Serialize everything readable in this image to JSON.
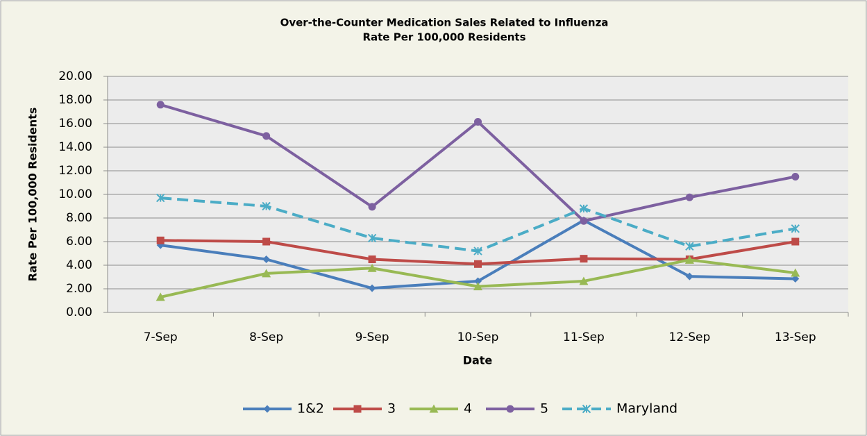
{
  "chart_data": {
    "type": "line",
    "title": "Over-the-Counter Medication Sales Related to Influenza",
    "subtitle": "Rate Per 100,000 Residents",
    "x_label": "Date",
    "y_label": "Rate Per 100,000 Residents",
    "categories": [
      "7-Sep",
      "8-Sep",
      "9-Sep",
      "10-Sep",
      "11-Sep",
      "12-Sep",
      "13-Sep"
    ],
    "series": [
      {
        "name": "1&2",
        "color": "#4a7ebb",
        "marker": "diamond",
        "dashed": false,
        "values": [
          5.7,
          4.5,
          2.05,
          2.65,
          7.8,
          3.05,
          2.85
        ]
      },
      {
        "name": "3",
        "color": "#be4b48",
        "marker": "square",
        "dashed": false,
        "values": [
          6.1,
          6.0,
          4.5,
          4.1,
          4.55,
          4.5,
          6.0
        ]
      },
      {
        "name": "4",
        "color": "#98b954",
        "marker": "triangle",
        "dashed": false,
        "values": [
          1.3,
          3.3,
          3.75,
          2.2,
          2.65,
          4.45,
          3.35
        ]
      },
      {
        "name": "5",
        "color": "#7d60a0",
        "marker": "circle",
        "dashed": false,
        "values": [
          17.6,
          14.95,
          8.95,
          16.15,
          7.75,
          9.75,
          11.5
        ]
      },
      {
        "name": "Maryland",
        "color": "#4bacc6",
        "marker": "star",
        "dashed": true,
        "values": [
          9.7,
          9.0,
          6.3,
          5.2,
          8.8,
          5.6,
          7.1
        ]
      }
    ],
    "ylim": [
      0,
      20
    ],
    "yticks": [
      {
        "value": 0,
        "label": "0.00"
      },
      {
        "value": 2,
        "label": "2.00"
      },
      {
        "value": 4,
        "label": "4.00"
      },
      {
        "value": 6,
        "label": "6.00"
      },
      {
        "value": 8,
        "label": "8.00"
      },
      {
        "value": 10,
        "label": "10.00"
      },
      {
        "value": 12,
        "label": "12.00"
      },
      {
        "value": 14,
        "label": "14.00"
      },
      {
        "value": 16,
        "label": "16.00"
      },
      {
        "value": 18,
        "label": "18.00"
      },
      {
        "value": 20,
        "label": "20.00"
      }
    ],
    "grid": true,
    "legend": "bottom"
  }
}
